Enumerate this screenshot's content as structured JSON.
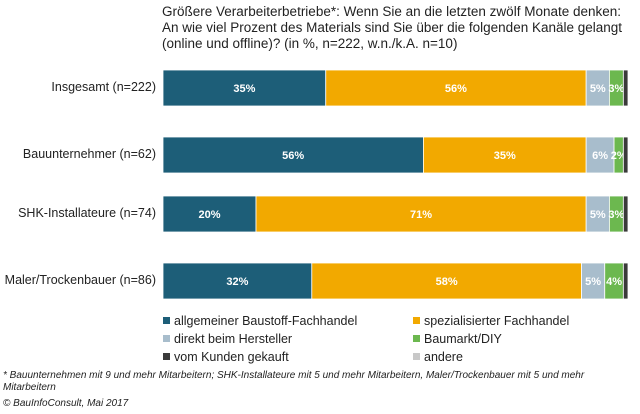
{
  "chart_data": {
    "type": "bar",
    "orientation": "horizontal-stacked",
    "title": "Größere Verarbeiterbetriebe*: Wenn Sie an die letzten zwölf Monate denken: An wie viel Prozent des Materials sind Sie über die folgenden Kanäle gelangt (online und offline)? (in %, n=222, w.n./k.A. n=10)",
    "categories": [
      "Insgesamt (n=222)",
      "Bauunternehmer (n=62)",
      "SHK-Installateure (n=74)",
      "Maler/Trockenbauer (n=86)"
    ],
    "series": [
      {
        "name": "allgemeiner Baustoff-Fachhandel",
        "color": "#1d5e78",
        "values": [
          35,
          56,
          20,
          32
        ],
        "labels": [
          "35%",
          "56%",
          "20%",
          "32%"
        ]
      },
      {
        "name": "spezialisierter Fachhandel",
        "color": "#f2a900",
        "values": [
          56,
          35,
          71,
          58
        ],
        "labels": [
          "56%",
          "35%",
          "71%",
          "58%"
        ]
      },
      {
        "name": "direkt beim Hersteller",
        "color": "#a8bdcc",
        "values": [
          5,
          6,
          5,
          5
        ],
        "labels": [
          "5%",
          "6%",
          "5%",
          "5%"
        ]
      },
      {
        "name": "Baumarkt/DIY",
        "color": "#6cb84f",
        "values": [
          3,
          2,
          3,
          4
        ],
        "labels": [
          "3%",
          "2%",
          "3%",
          "4%"
        ]
      },
      {
        "name": "vom Kunden gekauft",
        "color": "#3a3a3a",
        "values": [
          1,
          1,
          1,
          1
        ],
        "labels": [
          "",
          "",
          "",
          ""
        ]
      },
      {
        "name": "andere",
        "color": "#c8c8c8",
        "values": [
          0,
          0,
          0,
          0
        ],
        "labels": [
          "",
          "",
          "",
          ""
        ]
      }
    ],
    "xlim": [
      0,
      100
    ],
    "grid": false,
    "legend_position": "bottom"
  },
  "footnote": "* Bauunternehmen mit 9 und mehr Mitarbeitern; SHK-Installateure mit 5 und mehr Mitarbeitern, Maler/Trockenbauer mit 5 und mehr Mitarbeitern",
  "copyright": "© BauInfoConsult, Mai 2017"
}
